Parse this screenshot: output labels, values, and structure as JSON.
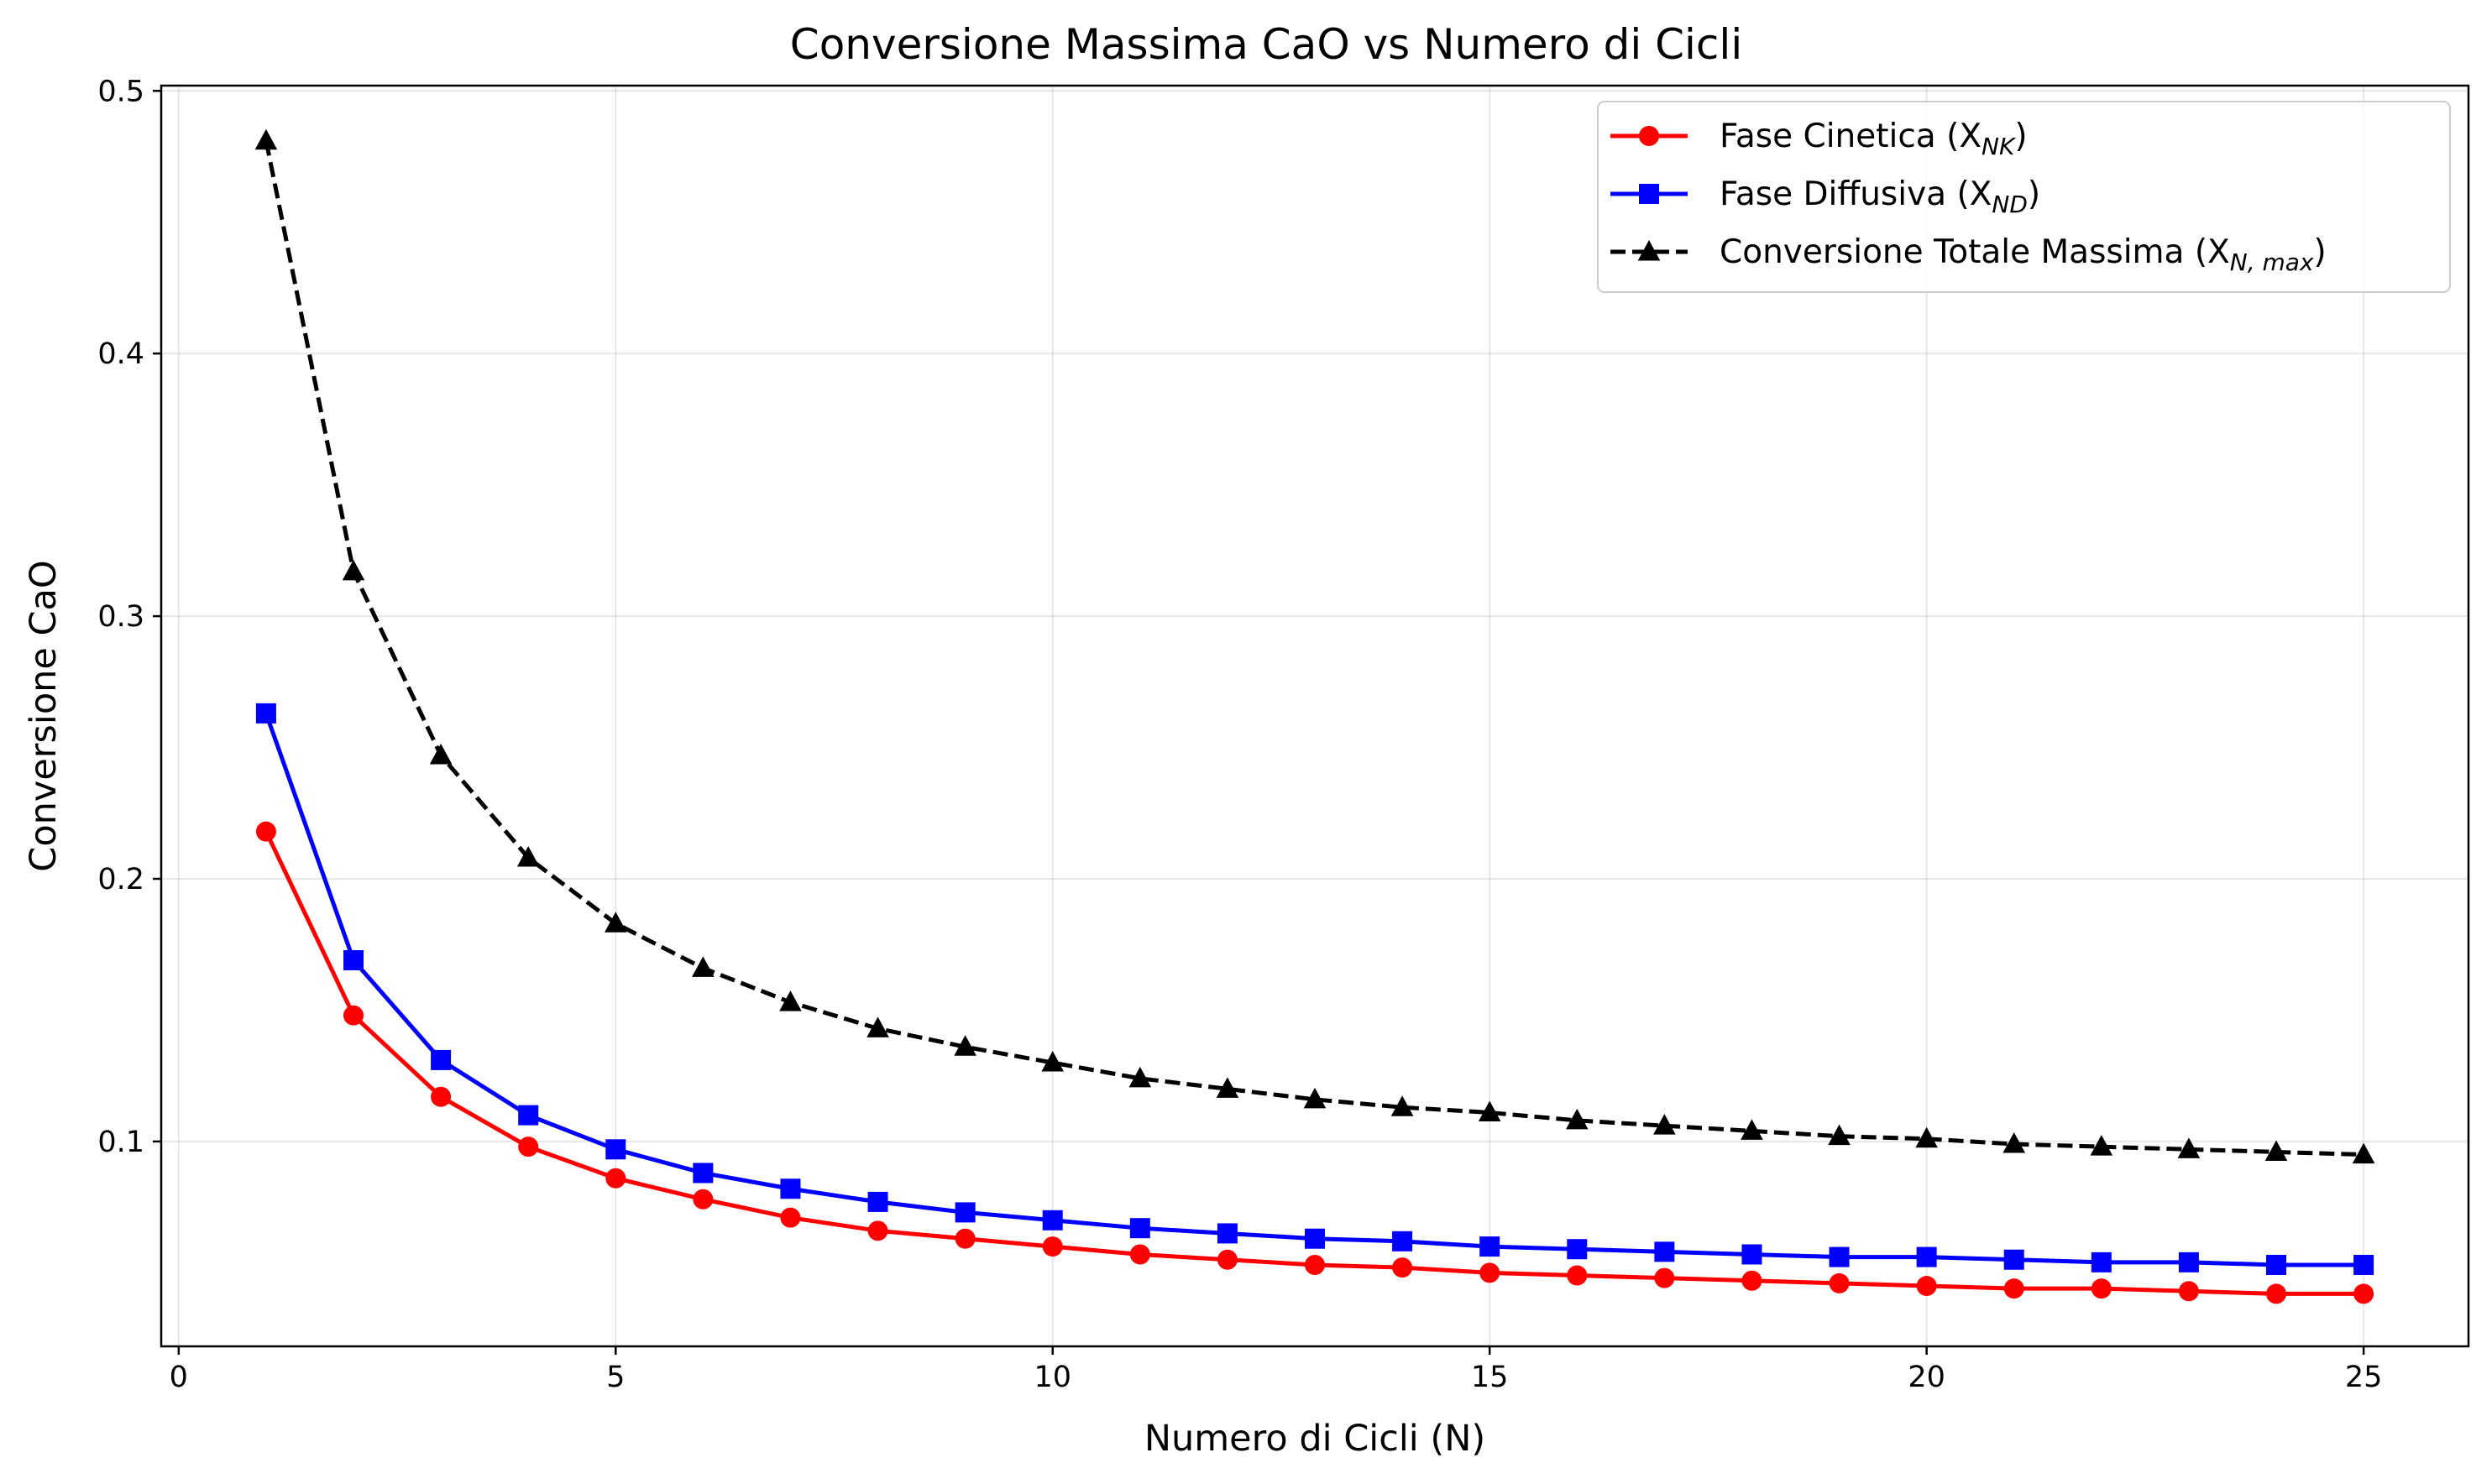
{
  "chart_data": {
    "type": "line",
    "title": "Conversione Massima CaO vs Numero di Cicli",
    "xlabel": "Numero di Cicli (N)",
    "ylabel": "Conversione CaO",
    "xlim": [
      -0.2,
      26.2
    ],
    "ylim": [
      0.022,
      0.502
    ],
    "xticks": [
      0,
      5,
      10,
      15,
      20,
      25
    ],
    "yticks": [
      0.1,
      0.2,
      0.3,
      0.4,
      0.5
    ],
    "xtick_labels": [
      "0",
      "5",
      "10",
      "15",
      "20",
      "25"
    ],
    "ytick_labels": [
      "0.1",
      "0.2",
      "0.3",
      "0.4",
      "0.5"
    ],
    "grid": true,
    "legend_position": "top-right",
    "x": [
      1,
      2,
      3,
      4,
      5,
      6,
      7,
      8,
      9,
      10,
      11,
      12,
      13,
      14,
      15,
      16,
      17,
      18,
      19,
      20,
      21,
      22,
      23,
      24,
      25
    ],
    "series": [
      {
        "name": "Fase Cinetica (X",
        "name_sub": "NK",
        "name_suffix": ")",
        "color": "#ff0000",
        "marker": "circle",
        "linestyle": "solid",
        "values": [
          0.218,
          0.148,
          0.117,
          0.098,
          0.086,
          0.078,
          0.071,
          0.066,
          0.063,
          0.06,
          0.057,
          0.055,
          0.053,
          0.052,
          0.05,
          0.049,
          0.048,
          0.047,
          0.046,
          0.045,
          0.044,
          0.044,
          0.043,
          0.042,
          0.042
        ]
      },
      {
        "name": "Fase Diffusiva (X",
        "name_sub": "ND",
        "name_suffix": ")",
        "color": "#0000ff",
        "marker": "square",
        "linestyle": "solid",
        "values": [
          0.263,
          0.169,
          0.131,
          0.11,
          0.097,
          0.088,
          0.082,
          0.077,
          0.073,
          0.07,
          0.067,
          0.065,
          0.063,
          0.062,
          0.06,
          0.059,
          0.058,
          0.057,
          0.056,
          0.056,
          0.055,
          0.054,
          0.054,
          0.053,
          0.053
        ]
      },
      {
        "name": "Conversione Totale Massima (X",
        "name_sub": "N, max",
        "name_suffix": ")",
        "color": "#000000",
        "marker": "triangle",
        "linestyle": "dashed",
        "values": [
          0.481,
          0.317,
          0.247,
          0.208,
          0.183,
          0.166,
          0.153,
          0.143,
          0.136,
          0.13,
          0.124,
          0.12,
          0.116,
          0.113,
          0.111,
          0.108,
          0.106,
          0.104,
          0.102,
          0.101,
          0.099,
          0.098,
          0.097,
          0.096,
          0.095
        ]
      }
    ]
  }
}
